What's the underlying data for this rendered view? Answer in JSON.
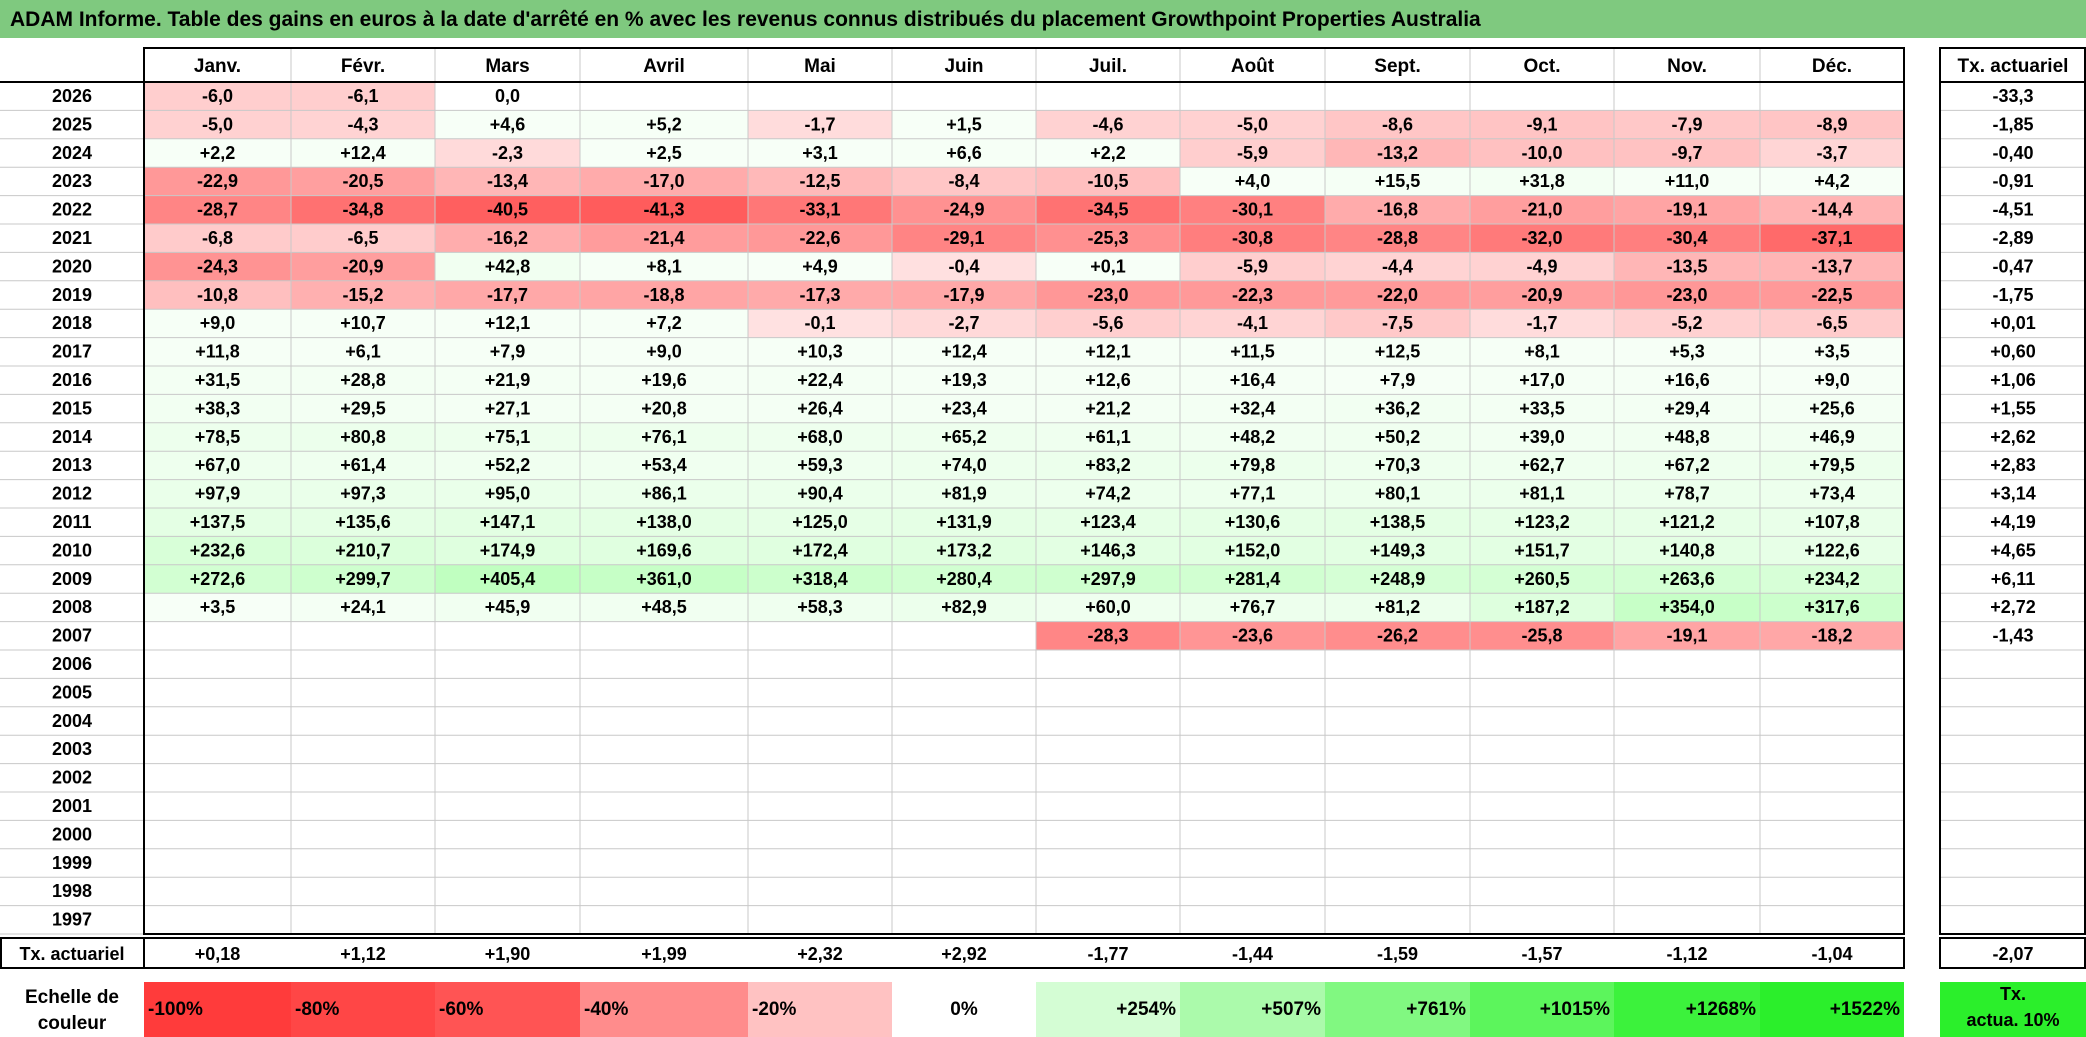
{
  "title": "ADAM Informe. Table des gains en euros à la date d'arrêté en % avec les revenus connus distribués du placement Growthpoint Properties Australia",
  "chart_data": {
    "type": "heatmap",
    "months": [
      "Janv.",
      "Févr.",
      "Mars",
      "Avril",
      "Mai",
      "Juin",
      "Juil.",
      "Août",
      "Sept.",
      "Oct.",
      "Nov.",
      "Déc."
    ],
    "rate_header": "Tx. actuariel",
    "rows": [
      {
        "year": "2026",
        "values": [
          "-6,0",
          "-6,1",
          "0,0",
          "",
          "",
          "",
          "",
          "",
          "",
          "",
          "",
          ""
        ],
        "rate": "-33,3"
      },
      {
        "year": "2025",
        "values": [
          "-5,0",
          "-4,3",
          "+4,6",
          "+5,2",
          "-1,7",
          "+1,5",
          "-4,6",
          "-5,0",
          "-8,6",
          "-9,1",
          "-7,9",
          "-8,9"
        ],
        "rate": "-1,85"
      },
      {
        "year": "2024",
        "values": [
          "+2,2",
          "+12,4",
          "-2,3",
          "+2,5",
          "+3,1",
          "+6,6",
          "+2,2",
          "-5,9",
          "-13,2",
          "-10,0",
          "-9,7",
          "-3,7"
        ],
        "rate": "-0,40"
      },
      {
        "year": "2023",
        "values": [
          "-22,9",
          "-20,5",
          "-13,4",
          "-17,0",
          "-12,5",
          "-8,4",
          "-10,5",
          "+4,0",
          "+15,5",
          "+31,8",
          "+11,0",
          "+4,2"
        ],
        "rate": "-0,91"
      },
      {
        "year": "2022",
        "values": [
          "-28,7",
          "-34,8",
          "-40,5",
          "-41,3",
          "-33,1",
          "-24,9",
          "-34,5",
          "-30,1",
          "-16,8",
          "-21,0",
          "-19,1",
          "-14,4"
        ],
        "rate": "-4,51"
      },
      {
        "year": "2021",
        "values": [
          "-6,8",
          "-6,5",
          "-16,2",
          "-21,4",
          "-22,6",
          "-29,1",
          "-25,3",
          "-30,8",
          "-28,8",
          "-32,0",
          "-30,4",
          "-37,1"
        ],
        "rate": "-2,89"
      },
      {
        "year": "2020",
        "values": [
          "-24,3",
          "-20,9",
          "+42,8",
          "+8,1",
          "+4,9",
          "-0,4",
          "+0,1",
          "-5,9",
          "-4,4",
          "-4,9",
          "-13,5",
          "-13,7"
        ],
        "rate": "-0,47"
      },
      {
        "year": "2019",
        "values": [
          "-10,8",
          "-15,2",
          "-17,7",
          "-18,8",
          "-17,3",
          "-17,9",
          "-23,0",
          "-22,3",
          "-22,0",
          "-20,9",
          "-23,0",
          "-22,5"
        ],
        "rate": "-1,75"
      },
      {
        "year": "2018",
        "values": [
          "+9,0",
          "+10,7",
          "+12,1",
          "+7,2",
          "-0,1",
          "-2,7",
          "-5,6",
          "-4,1",
          "-7,5",
          "-1,7",
          "-5,2",
          "-6,5"
        ],
        "rate": "+0,01"
      },
      {
        "year": "2017",
        "values": [
          "+11,8",
          "+6,1",
          "+7,9",
          "+9,0",
          "+10,3",
          "+12,4",
          "+12,1",
          "+11,5",
          "+12,5",
          "+8,1",
          "+5,3",
          "+3,5"
        ],
        "rate": "+0,60"
      },
      {
        "year": "2016",
        "values": [
          "+31,5",
          "+28,8",
          "+21,9",
          "+19,6",
          "+22,4",
          "+19,3",
          "+12,6",
          "+16,4",
          "+7,9",
          "+17,0",
          "+16,6",
          "+9,0"
        ],
        "rate": "+1,06"
      },
      {
        "year": "2015",
        "values": [
          "+38,3",
          "+29,5",
          "+27,1",
          "+20,8",
          "+26,4",
          "+23,4",
          "+21,2",
          "+32,4",
          "+36,2",
          "+33,5",
          "+29,4",
          "+25,6"
        ],
        "rate": "+1,55"
      },
      {
        "year": "2014",
        "values": [
          "+78,5",
          "+80,8",
          "+75,1",
          "+76,1",
          "+68,0",
          "+65,2",
          "+61,1",
          "+48,2",
          "+50,2",
          "+39,0",
          "+48,8",
          "+46,9"
        ],
        "rate": "+2,62"
      },
      {
        "year": "2013",
        "values": [
          "+67,0",
          "+61,4",
          "+52,2",
          "+53,4",
          "+59,3",
          "+74,0",
          "+83,2",
          "+79,8",
          "+70,3",
          "+62,7",
          "+67,2",
          "+79,5"
        ],
        "rate": "+2,83"
      },
      {
        "year": "2012",
        "values": [
          "+97,9",
          "+97,3",
          "+95,0",
          "+86,1",
          "+90,4",
          "+81,9",
          "+74,2",
          "+77,1",
          "+80,1",
          "+81,1",
          "+78,7",
          "+73,4"
        ],
        "rate": "+3,14"
      },
      {
        "year": "2011",
        "values": [
          "+137,5",
          "+135,6",
          "+147,1",
          "+138,0",
          "+125,0",
          "+131,9",
          "+123,4",
          "+130,6",
          "+138,5",
          "+123,2",
          "+121,2",
          "+107,8"
        ],
        "rate": "+4,19"
      },
      {
        "year": "2010",
        "values": [
          "+232,6",
          "+210,7",
          "+174,9",
          "+169,6",
          "+172,4",
          "+173,2",
          "+146,3",
          "+152,0",
          "+149,3",
          "+151,7",
          "+140,8",
          "+122,6"
        ],
        "rate": "+4,65"
      },
      {
        "year": "2009",
        "values": [
          "+272,6",
          "+299,7",
          "+405,4",
          "+361,0",
          "+318,4",
          "+280,4",
          "+297,9",
          "+281,4",
          "+248,9",
          "+260,5",
          "+263,6",
          "+234,2"
        ],
        "rate": "+6,11"
      },
      {
        "year": "2008",
        "values": [
          "+3,5",
          "+24,1",
          "+45,9",
          "+48,5",
          "+58,3",
          "+82,9",
          "+60,0",
          "+76,7",
          "+81,2",
          "+187,2",
          "+354,0",
          "+317,6"
        ],
        "rate": "+2,72"
      },
      {
        "year": "2007",
        "values": [
          "",
          "",
          "",
          "",
          "",
          "",
          "-28,3",
          "-23,6",
          "-26,2",
          "-25,8",
          "-19,1",
          "-18,2"
        ],
        "rate": "-1,43"
      },
      {
        "year": "2006",
        "values": [
          "",
          "",
          "",
          "",
          "",
          "",
          "",
          "",
          "",
          "",
          "",
          ""
        ],
        "rate": ""
      },
      {
        "year": "2005",
        "values": [
          "",
          "",
          "",
          "",
          "",
          "",
          "",
          "",
          "",
          "",
          "",
          ""
        ],
        "rate": ""
      },
      {
        "year": "2004",
        "values": [
          "",
          "",
          "",
          "",
          "",
          "",
          "",
          "",
          "",
          "",
          "",
          ""
        ],
        "rate": ""
      },
      {
        "year": "2003",
        "values": [
          "",
          "",
          "",
          "",
          "",
          "",
          "",
          "",
          "",
          "",
          "",
          ""
        ],
        "rate": ""
      },
      {
        "year": "2002",
        "values": [
          "",
          "",
          "",
          "",
          "",
          "",
          "",
          "",
          "",
          "",
          "",
          ""
        ],
        "rate": ""
      },
      {
        "year": "2001",
        "values": [
          "",
          "",
          "",
          "",
          "",
          "",
          "",
          "",
          "",
          "",
          "",
          ""
        ],
        "rate": ""
      },
      {
        "year": "2000",
        "values": [
          "",
          "",
          "",
          "",
          "",
          "",
          "",
          "",
          "",
          "",
          "",
          ""
        ],
        "rate": ""
      },
      {
        "year": "1999",
        "values": [
          "",
          "",
          "",
          "",
          "",
          "",
          "",
          "",
          "",
          "",
          "",
          ""
        ],
        "rate": ""
      },
      {
        "year": "1998",
        "values": [
          "",
          "",
          "",
          "",
          "",
          "",
          "",
          "",
          "",
          "",
          "",
          ""
        ],
        "rate": ""
      },
      {
        "year": "1997",
        "values": [
          "",
          "",
          "",
          "",
          "",
          "",
          "",
          "",
          "",
          "",
          "",
          ""
        ],
        "rate": ""
      }
    ],
    "footer": {
      "label": "Tx. actuariel",
      "values": [
        "+0,18",
        "+1,12",
        "+1,90",
        "+1,99",
        "+2,32",
        "+2,92",
        "-1,77",
        "-1,44",
        "-1,59",
        "-1,57",
        "-1,12",
        "-1,04"
      ],
      "rate": "-2,07"
    },
    "scale": {
      "label_lines": [
        "Echelle de",
        "couleur"
      ],
      "stops": [
        {
          "label": "-100%",
          "color": "#ff3b3b"
        },
        {
          "label": "-80%",
          "color": "#ff4646"
        },
        {
          "label": "-60%",
          "color": "#ff5454"
        },
        {
          "label": "-40%",
          "color": "#ff8c8c"
        },
        {
          "label": "-20%",
          "color": "#ffc2c2"
        },
        {
          "label": "0%",
          "color": "#ffffff"
        },
        {
          "label": "+254%",
          "color": "#d4fdd4"
        },
        {
          "label": "+507%",
          "color": "#abfaab"
        },
        {
          "label": "+761%",
          "color": "#81f881"
        },
        {
          "label": "+1015%",
          "color": "#5cf55c"
        },
        {
          "label": "+1268%",
          "color": "#3cf23c"
        },
        {
          "label": "+1522%",
          "color": "#2bef2b"
        }
      ],
      "rate_label_lines": [
        "Tx.",
        "actua. 10%"
      ],
      "rate_color": "#2bef2b"
    }
  }
}
